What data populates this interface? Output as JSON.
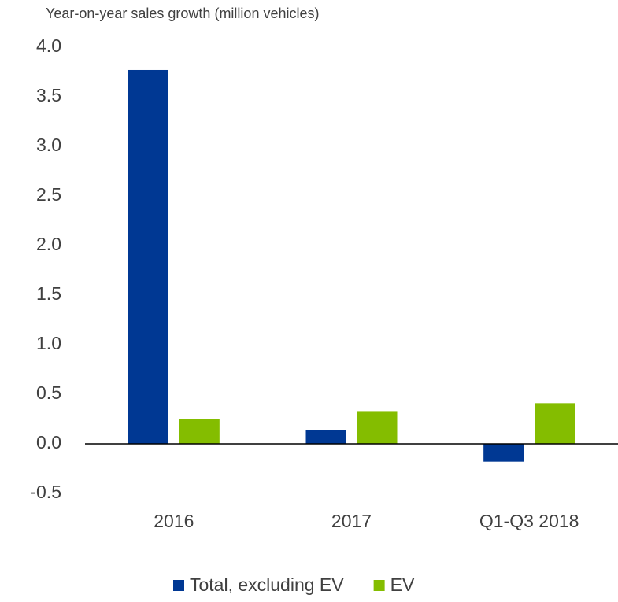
{
  "chart_data": {
    "type": "bar",
    "y_axis_label": "Year-on-year sales growth (million vehicles)",
    "categories": [
      "2016",
      "2017",
      "Q1-Q3 2018"
    ],
    "series": [
      {
        "name": "Total, excluding EV",
        "color": "#003893",
        "values": [
          3.77,
          0.14,
          -0.18
        ]
      },
      {
        "name": "EV",
        "color": "#84bd00",
        "values": [
          0.25,
          0.33,
          0.41
        ]
      }
    ],
    "ylim": [
      -0.5,
      4.0
    ],
    "yticks": [
      -0.5,
      {
        "value": 0,
        "label": "0.0"
      },
      0.5,
      {
        "value": 1,
        "label": "1.0"
      },
      1.5,
      {
        "value": 2,
        "label": "2.0"
      },
      2.5,
      {
        "value": 3,
        "label": "3.0"
      },
      3.5,
      {
        "value": 4,
        "label": "4.0"
      }
    ],
    "grid": false,
    "legend": "bottom"
  }
}
